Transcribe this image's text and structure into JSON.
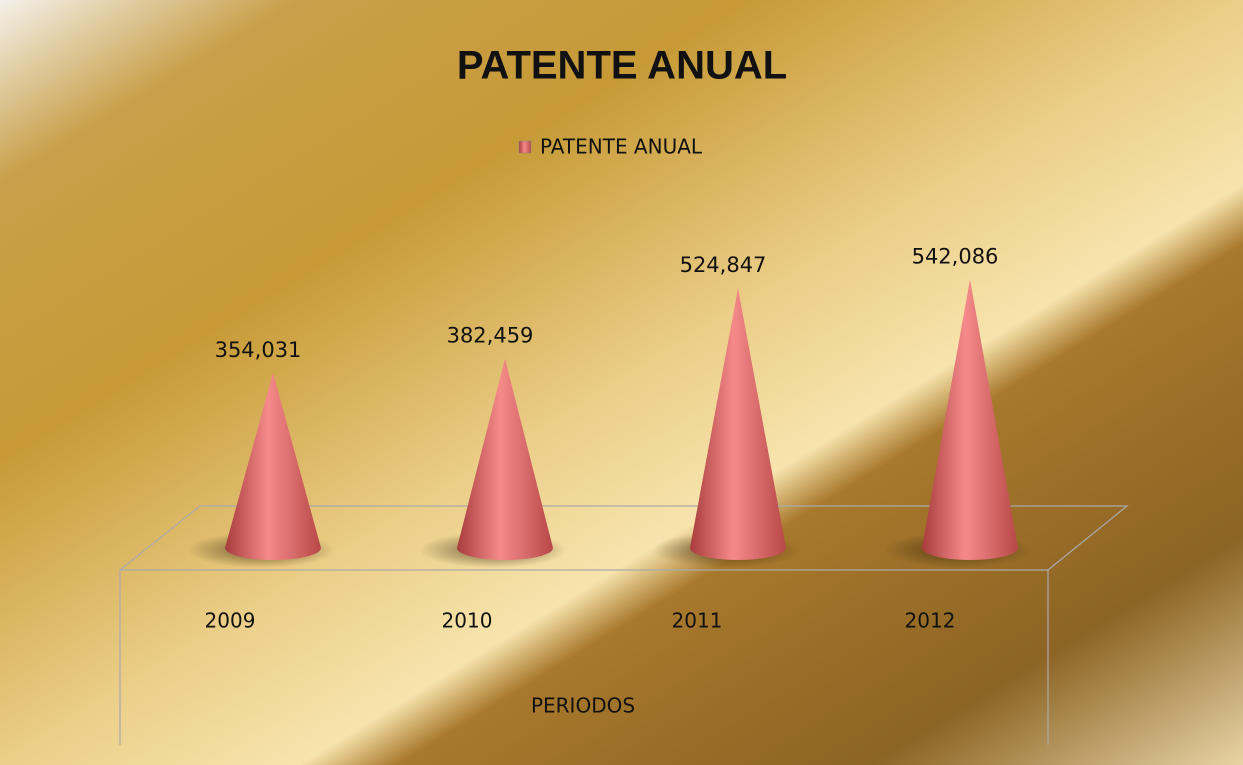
{
  "chart_data": {
    "type": "cone",
    "title": "PATENTE ANUAL",
    "x_label": "PERIODOS",
    "categories": [
      "2009",
      "2010",
      "2011",
      "2012"
    ],
    "series": [
      {
        "name": "PATENTE ANUAL",
        "color": "#e06a6a",
        "values": [
          354031,
          382459,
          524847,
          542086
        ],
        "value_labels": [
          "354,031",
          "382,459",
          "524,847",
          "542,086"
        ]
      }
    ]
  }
}
